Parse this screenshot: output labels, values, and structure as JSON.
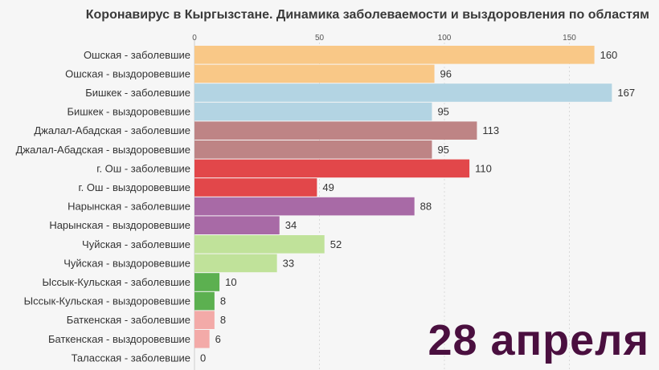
{
  "chart_data": {
    "type": "bar",
    "orientation": "horizontal",
    "title": "Коронавирус в Кыргызстане. Динамика заболеваемости и выздоровления по областям",
    "xlim": [
      0,
      175
    ],
    "xticks": [
      0,
      50,
      100,
      150
    ],
    "grid": true,
    "categories": [
      "Ошская - заболевшие",
      "Ошская - выздоровевшие",
      "Бишкек - заболевшие",
      "Бишкек - выздоровевшие",
      "Джалал-Абадская - заболевшие",
      "Джалал-Абадская - выздоровевшие",
      "г. Ош - заболевшие",
      "г. Ош - выздоровевшие",
      "Нарынская - заболевшие",
      "Нарынская - выздоровевшие",
      "Чуйская - заболевшие",
      "Чуйская - выздоровевшие",
      "Ыссык-Кульская - заболевшие",
      "Ыссык-Кульская - выздоровевшие",
      "Баткенская - заболевшие",
      "Баткенская - выздоровевшие",
      "Таласская - заболевшие"
    ],
    "values": [
      160,
      96,
      167,
      95,
      113,
      95,
      110,
      49,
      88,
      34,
      52,
      33,
      10,
      8,
      8,
      6,
      0
    ],
    "colors": [
      "#f9c887",
      "#f9c887",
      "#b3d4e3",
      "#b3d4e3",
      "#be8485",
      "#be8485",
      "#e2474a",
      "#e2474a",
      "#a86aa6",
      "#a86aa6",
      "#c0e29a",
      "#c0e29a",
      "#5cb050",
      "#5cb050",
      "#f3aaa8",
      "#f3aaa8",
      "#f3aaa8"
    ]
  },
  "date_label": "28 апреля"
}
